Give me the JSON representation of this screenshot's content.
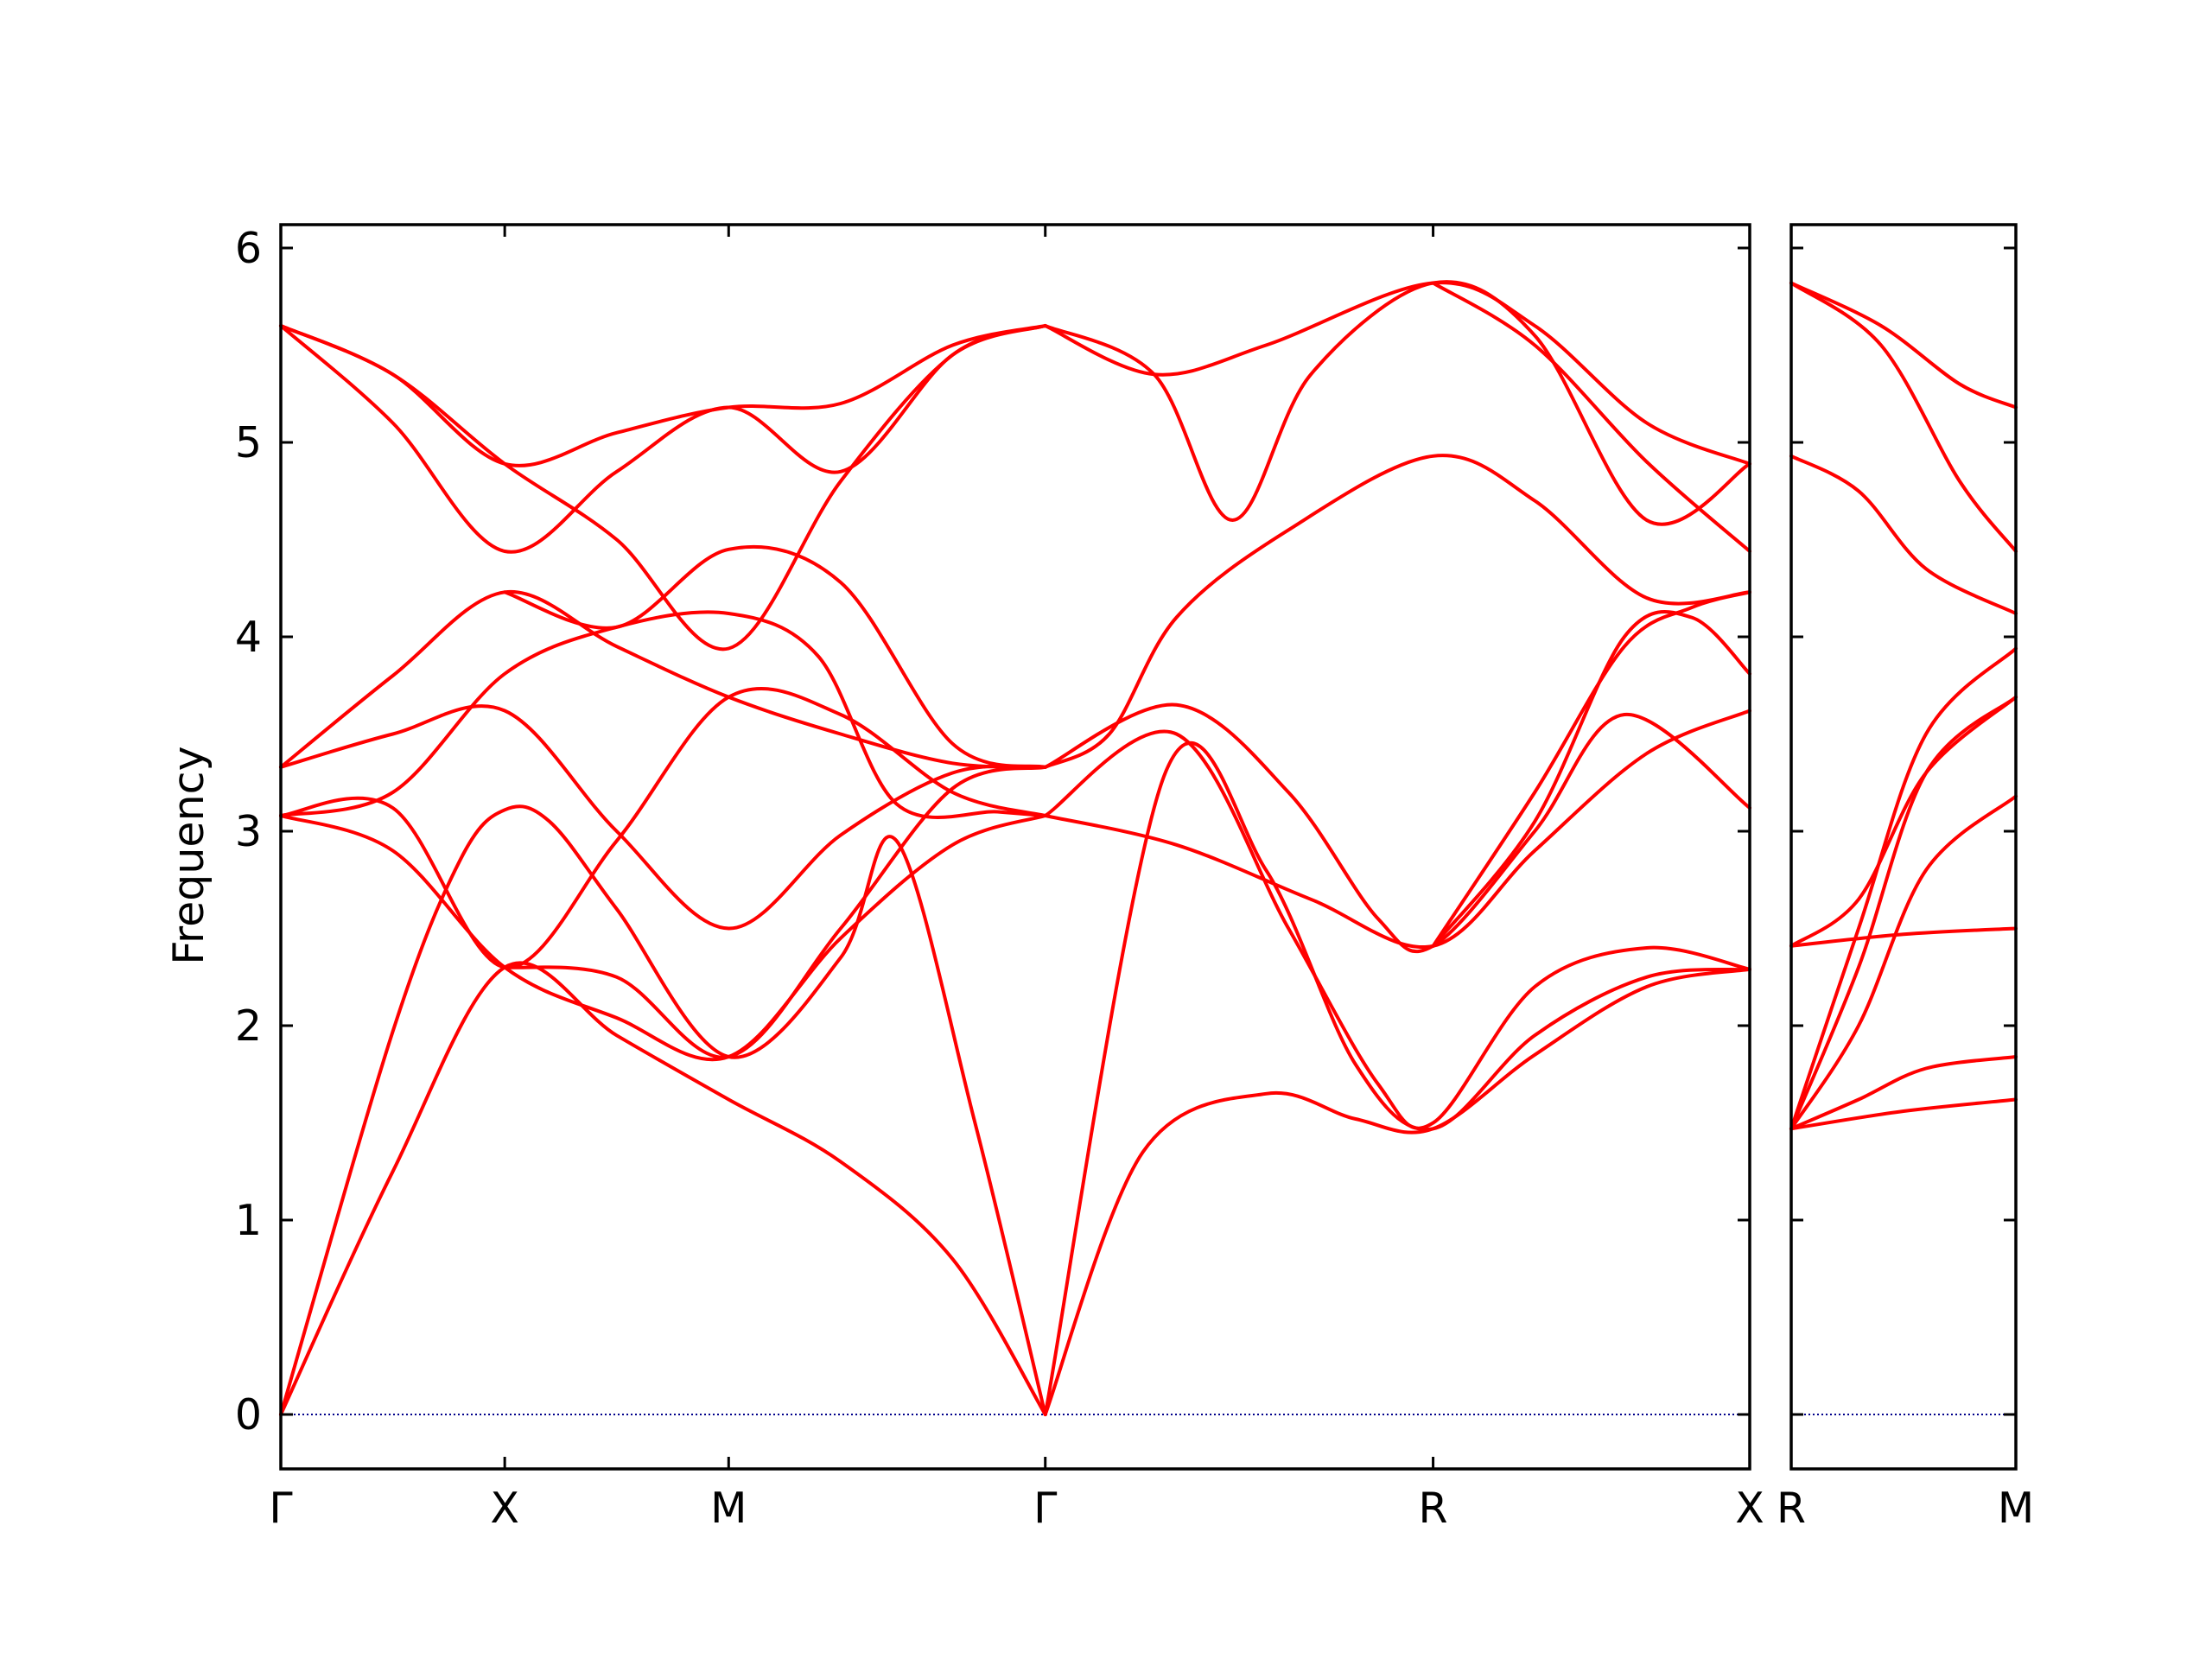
{
  "chart_data": {
    "type": "line",
    "ylabel": "Frequency",
    "ylim": [
      -0.28,
      6.12
    ],
    "y_ticks": [
      "0",
      "1",
      "2",
      "3",
      "4",
      "5",
      "6"
    ],
    "y_tick_values": [
      0,
      1,
      2,
      3,
      4,
      5,
      6
    ],
    "line_color": "#ff0000",
    "zero_line_color": "#00008b",
    "grid": false,
    "panels": [
      {
        "id": "left",
        "x_ticks": [
          "Γ",
          "X",
          "M",
          "Γ",
          "R",
          "X"
        ],
        "x_tick_values": [
          0,
          1,
          2,
          3.414,
          5.146,
          6.56
        ],
        "xlim": [
          0,
          6.56
        ],
        "bands": [
          [
            [
              0,
              0
            ],
            [
              0.5,
              1.97
            ],
            [
              0.8,
              2.85
            ],
            [
              1,
              3.11
            ],
            [
              1.2,
              3.05
            ],
            [
              1.5,
              2.6
            ],
            [
              2,
              1.84
            ],
            [
              2.5,
              2.35
            ],
            [
              2.75,
              2.95
            ],
            [
              3.1,
              1.5
            ],
            [
              3.414,
              0
            ]
          ],
          [
            [
              0,
              0
            ],
            [
              0.5,
              1.25
            ],
            [
              1,
              2.3
            ],
            [
              1.5,
              1.95
            ],
            [
              2,
              1.62
            ],
            [
              2.5,
              1.3
            ],
            [
              3,
              0.8
            ],
            [
              3.414,
              0
            ]
          ],
          [
            [
              0,
              3.08
            ],
            [
              0.5,
              2.9
            ],
            [
              1,
              2.3
            ],
            [
              1.5,
              2.04
            ],
            [
              2,
              1.84
            ],
            [
              2.5,
              2.45
            ],
            [
              3,
              2.93
            ],
            [
              3.414,
              3.08
            ]
          ],
          [
            [
              0,
              3.08
            ],
            [
              0.5,
              3.2
            ],
            [
              1,
              3.81
            ],
            [
              1.5,
              4.05
            ],
            [
              2,
              4.12
            ],
            [
              2.4,
              3.9
            ],
            [
              2.75,
              3.14
            ],
            [
              3.2,
              3.1
            ],
            [
              3.414,
              3.08
            ]
          ],
          [
            [
              0,
              3.33
            ],
            [
              0.5,
              3.5
            ],
            [
              1,
              3.62
            ],
            [
              1.5,
              3.0
            ],
            [
              2,
              2.5
            ],
            [
              2.5,
              2.98
            ],
            [
              3,
              3.3
            ],
            [
              3.414,
              3.33
            ]
          ],
          [
            [
              0,
              3.33
            ],
            [
              0.5,
              3.8
            ],
            [
              1,
              4.23
            ],
            [
              1.5,
              3.95
            ],
            [
              2,
              3.69
            ],
            [
              2.5,
              3.5
            ],
            [
              3,
              3.35
            ],
            [
              3.414,
              3.33
            ]
          ],
          [
            [
              0,
              3.08
            ],
            [
              0.5,
              3.12
            ],
            [
              1,
              2.3
            ],
            [
              1.5,
              2.95
            ],
            [
              2,
              3.69
            ],
            [
              2.5,
              3.6
            ],
            [
              3,
              3.2
            ],
            [
              3.414,
              3.08
            ]
          ],
          [
            [
              0,
              5.6
            ],
            [
              0.5,
              5.1
            ],
            [
              1,
              4.44
            ],
            [
              1.5,
              4.85
            ],
            [
              2,
              5.18
            ],
            [
              2.5,
              4.85
            ],
            [
              3,
              5.45
            ],
            [
              3.414,
              5.6
            ]
          ],
          [
            [
              0,
              5.6
            ],
            [
              0.5,
              5.35
            ],
            [
              1,
              4.89
            ],
            [
              1.5,
              5.05
            ],
            [
              2,
              5.18
            ],
            [
              2.5,
              5.2
            ],
            [
              3,
              5.5
            ],
            [
              3.414,
              5.6
            ]
          ],
          [
            [
              0,
              5.6
            ],
            [
              0.5,
              5.35
            ],
            [
              1,
              4.89
            ],
            [
              1.5,
              4.5
            ],
            [
              2,
              3.94
            ],
            [
              2.5,
              4.8
            ],
            [
              3,
              5.45
            ],
            [
              3.414,
              5.6
            ]
          ],
          [
            [
              1,
              4.23
            ],
            [
              1.5,
              4.05
            ],
            [
              2,
              4.45
            ],
            [
              2.5,
              4.28
            ],
            [
              3,
              3.45
            ],
            [
              3.414,
              3.33
            ]
          ],
          [
            [
              1,
              2.3
            ],
            [
              1.5,
              2.25
            ],
            [
              2,
              1.84
            ],
            [
              2.5,
              2.5
            ],
            [
              3,
              3.22
            ],
            [
              3.414,
              3.33
            ]
          ],
          [
            [
              3.414,
              0
            ],
            [
              3.85,
              1.35
            ],
            [
              4.4,
              1.65
            ],
            [
              4.8,
              1.52
            ],
            [
              5.146,
              1.47
            ],
            [
              5.6,
              1.85
            ],
            [
              6.1,
              2.2
            ],
            [
              6.56,
              2.29
            ]
          ],
          [
            [
              3.414,
              0
            ],
            [
              3.95,
              3.3
            ],
            [
              4.4,
              2.8
            ],
            [
              4.8,
              1.8
            ],
            [
              5.146,
              1.47
            ],
            [
              5.6,
              1.95
            ],
            [
              6.1,
              2.25
            ],
            [
              6.56,
              2.29
            ]
          ],
          [
            [
              3.414,
              3.08
            ],
            [
              4.0,
              3.5
            ],
            [
              4.5,
              2.5
            ],
            [
              4.9,
              1.7
            ],
            [
              5.146,
              1.5
            ],
            [
              5.6,
              2.2
            ],
            [
              6.1,
              2.4
            ],
            [
              6.56,
              2.29
            ]
          ],
          [
            [
              3.414,
              3.08
            ],
            [
              4.0,
              2.93
            ],
            [
              4.6,
              2.65
            ],
            [
              5.146,
              2.41
            ],
            [
              5.6,
              2.9
            ],
            [
              6.1,
              3.4
            ],
            [
              6.56,
              3.62
            ]
          ],
          [
            [
              3.414,
              3.33
            ],
            [
              4.0,
              3.65
            ],
            [
              4.5,
              3.2
            ],
            [
              4.9,
              2.55
            ],
            [
              5.146,
              2.41
            ],
            [
              5.6,
              3.0
            ],
            [
              6.0,
              3.6
            ],
            [
              6.56,
              3.12
            ]
          ],
          [
            [
              3.414,
              3.33
            ],
            [
              3.7,
              3.5
            ],
            [
              4.0,
              4.1
            ],
            [
              4.5,
              4.55
            ],
            [
              5.146,
              4.93
            ],
            [
              5.6,
              4.7
            ],
            [
              6.1,
              4.2
            ],
            [
              6.56,
              4.23
            ]
          ],
          [
            [
              5.146,
              2.41
            ],
            [
              5.6,
              3.05
            ],
            [
              6.0,
              4.0
            ],
            [
              6.3,
              4.1
            ],
            [
              6.56,
              3.81
            ]
          ],
          [
            [
              5.146,
              2.41
            ],
            [
              5.6,
              3.2
            ],
            [
              6.0,
              3.95
            ],
            [
              6.3,
              4.15
            ],
            [
              6.56,
              4.23
            ]
          ],
          [
            [
              3.414,
              5.6
            ],
            [
              3.9,
              5.35
            ],
            [
              4.25,
              4.6
            ],
            [
              4.6,
              5.35
            ],
            [
              5.146,
              5.82
            ],
            [
              5.6,
              5.55
            ],
            [
              6.1,
              4.6
            ],
            [
              6.56,
              4.89
            ]
          ],
          [
            [
              3.414,
              5.6
            ],
            [
              3.9,
              5.35
            ],
            [
              4.4,
              5.5
            ],
            [
              5.146,
              5.82
            ],
            [
              5.6,
              5.6
            ],
            [
              6.1,
              5.1
            ],
            [
              6.56,
              4.89
            ]
          ],
          [
            [
              5.146,
              5.82
            ],
            [
              5.6,
              5.5
            ],
            [
              6.1,
              4.9
            ],
            [
              6.56,
              4.44
            ]
          ]
        ]
      },
      {
        "id": "right",
        "x_ticks": [
          "R",
          "M"
        ],
        "x_tick_values": [
          0,
          1
        ],
        "xlim": [
          0,
          1
        ],
        "bands": [
          [
            [
              0,
              1.47
            ],
            [
              0.5,
              1.56
            ],
            [
              1,
              1.62
            ]
          ],
          [
            [
              0,
              1.47
            ],
            [
              0.3,
              1.62
            ],
            [
              0.6,
              1.78
            ],
            [
              1,
              1.84
            ]
          ],
          [
            [
              0,
              1.47
            ],
            [
              0.3,
              2.0
            ],
            [
              0.6,
              2.8
            ],
            [
              1,
              3.18
            ]
          ],
          [
            [
              0,
              1.47
            ],
            [
              0.3,
              2.3
            ],
            [
              0.6,
              3.3
            ],
            [
              1,
              3.69
            ]
          ],
          [
            [
              0,
              1.47
            ],
            [
              0.3,
              2.5
            ],
            [
              0.6,
              3.5
            ],
            [
              1,
              3.94
            ]
          ],
          [
            [
              0,
              2.41
            ],
            [
              0.5,
              2.47
            ],
            [
              1,
              2.5
            ]
          ],
          [
            [
              0,
              2.41
            ],
            [
              0.3,
              2.65
            ],
            [
              0.6,
              3.3
            ],
            [
              1,
              3.69
            ]
          ],
          [
            [
              0,
              4.93
            ],
            [
              0.3,
              4.75
            ],
            [
              0.6,
              4.35
            ],
            [
              1,
              4.12
            ]
          ],
          [
            [
              0,
              5.82
            ],
            [
              0.4,
              5.5
            ],
            [
              0.75,
              4.8
            ],
            [
              1,
              4.44
            ]
          ],
          [
            [
              0,
              5.82
            ],
            [
              0.4,
              5.6
            ],
            [
              0.75,
              5.3
            ],
            [
              1,
              5.18
            ]
          ]
        ]
      }
    ]
  }
}
